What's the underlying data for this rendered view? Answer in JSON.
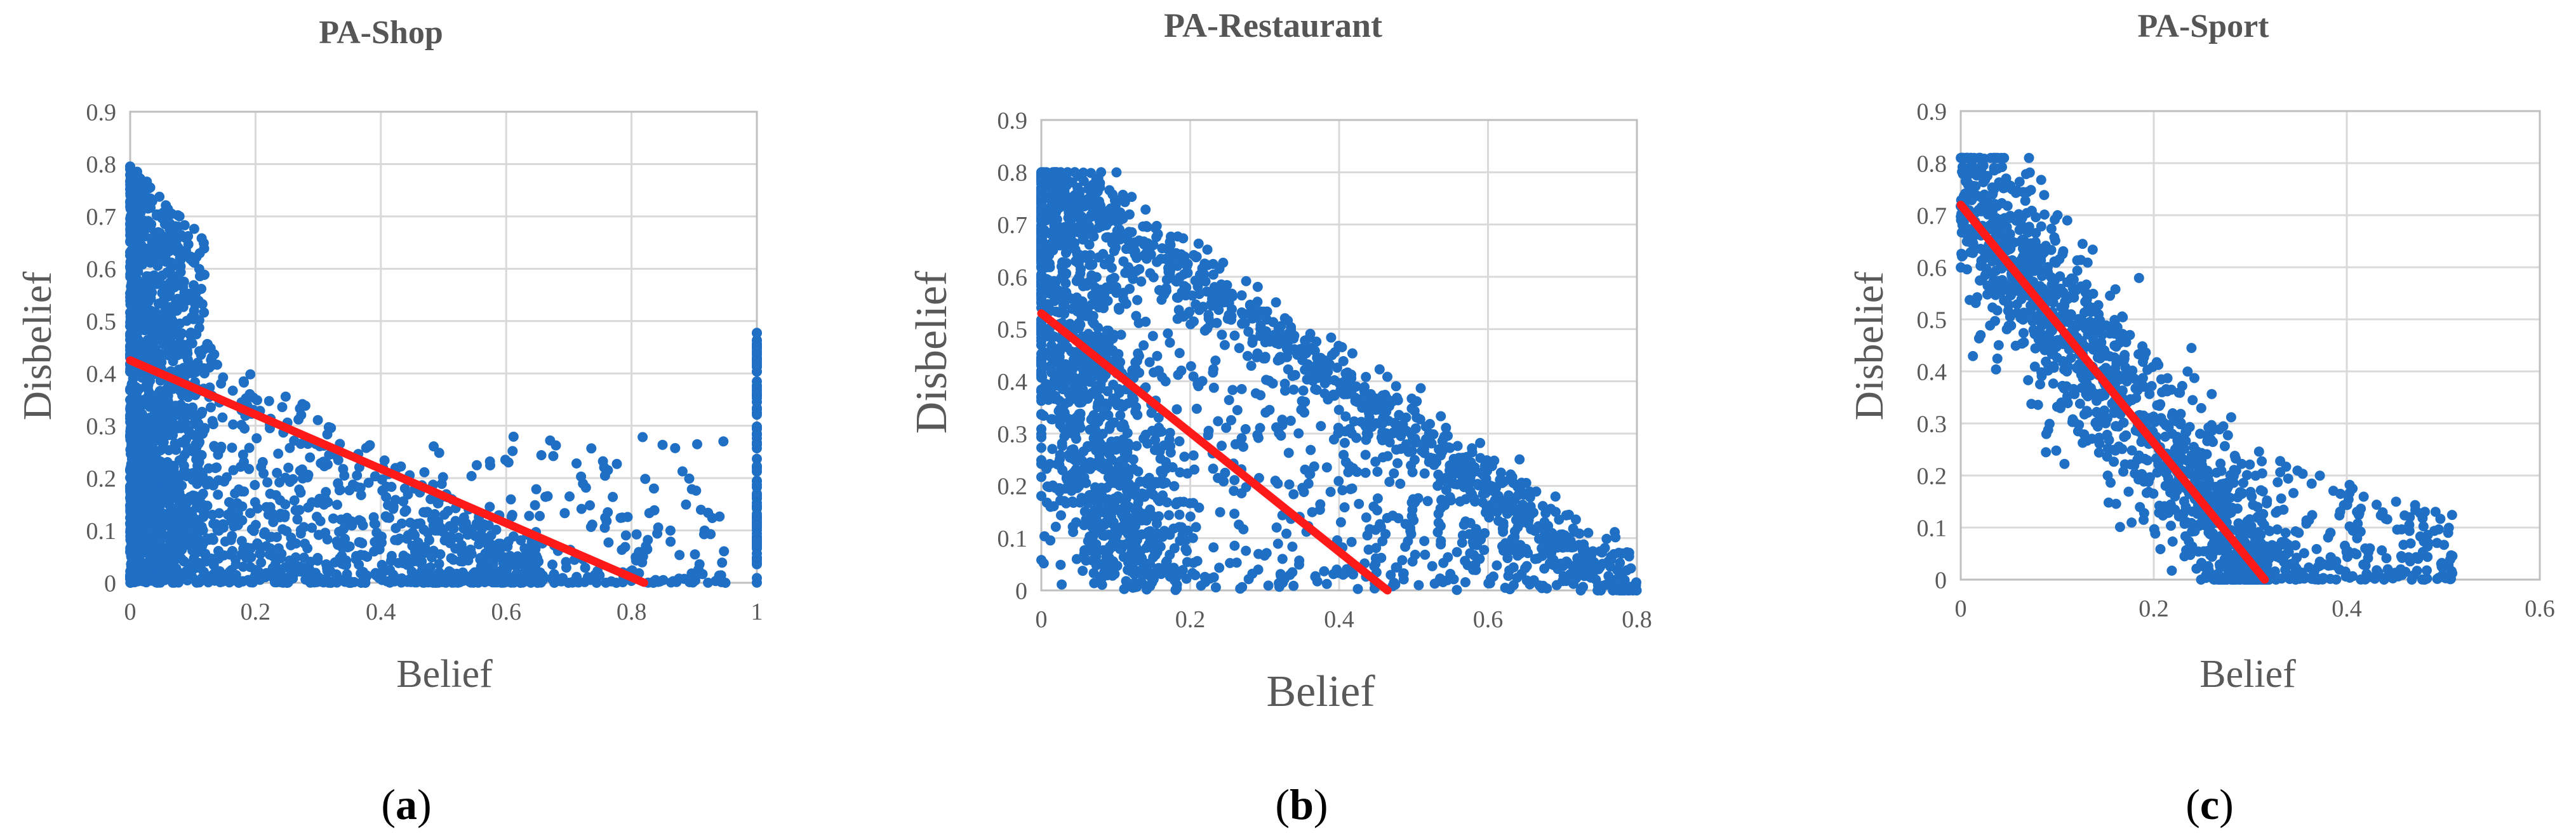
{
  "colors": {
    "points": "#1f6fc5",
    "trendline": "#ff1a1a",
    "grid": "#d9d9d9",
    "axis": "#bfbfbf"
  },
  "chart_data": [
    {
      "type": "scatter",
      "title": "PA-Shop",
      "xlabel": "Belief",
      "ylabel": "Disbelief",
      "xlim": [
        0,
        1
      ],
      "ylim": [
        0,
        0.9
      ],
      "xticks": [
        "0",
        "0.2",
        "0.4",
        "0.6",
        "0.8",
        "1"
      ],
      "yticks": [
        "0",
        "0.1",
        "0.2",
        "0.3",
        "0.4",
        "0.5",
        "0.6",
        "0.7",
        "0.8",
        "0.9"
      ],
      "grid": true,
      "trendline": {
        "x": [
          0,
          0.82
        ],
        "y": [
          0.425,
          0
        ]
      },
      "panel": {
        "open": "(",
        "letter": "a",
        "close": ")"
      }
    },
    {
      "type": "scatter",
      "title": "PA-Restaurant",
      "xlabel": "Belief",
      "ylabel": "Disbelief",
      "xlim": [
        0,
        0.8
      ],
      "ylim": [
        0,
        0.9
      ],
      "xticks": [
        "0",
        "0.2",
        "0.4",
        "0.6",
        "0.8"
      ],
      "yticks": [
        "0",
        "0.1",
        "0.2",
        "0.3",
        "0.4",
        "0.5",
        "0.6",
        "0.7",
        "0.8",
        "0.9"
      ],
      "grid": true,
      "trendline": {
        "x": [
          0,
          0.465
        ],
        "y": [
          0.53,
          0
        ]
      },
      "panel": {
        "open": "(",
        "letter": "b",
        "close": ")"
      }
    },
    {
      "type": "scatter",
      "title": "PA-Sport",
      "xlabel": "Belief",
      "ylabel": "Disbelief",
      "xlim": [
        0,
        0.6
      ],
      "ylim": [
        0,
        0.9
      ],
      "xticks": [
        "0",
        "0.2",
        "0.4",
        "0.6"
      ],
      "yticks": [
        "0",
        "0.1",
        "0.2",
        "0.3",
        "0.4",
        "0.5",
        "0.6",
        "0.7",
        "0.8",
        "0.9"
      ],
      "grid": true,
      "trendline": {
        "x": [
          0,
          0.315
        ],
        "y": [
          0.72,
          0
        ]
      },
      "panel": {
        "open": "(",
        "letter": "c",
        "close": ")"
      }
    }
  ]
}
